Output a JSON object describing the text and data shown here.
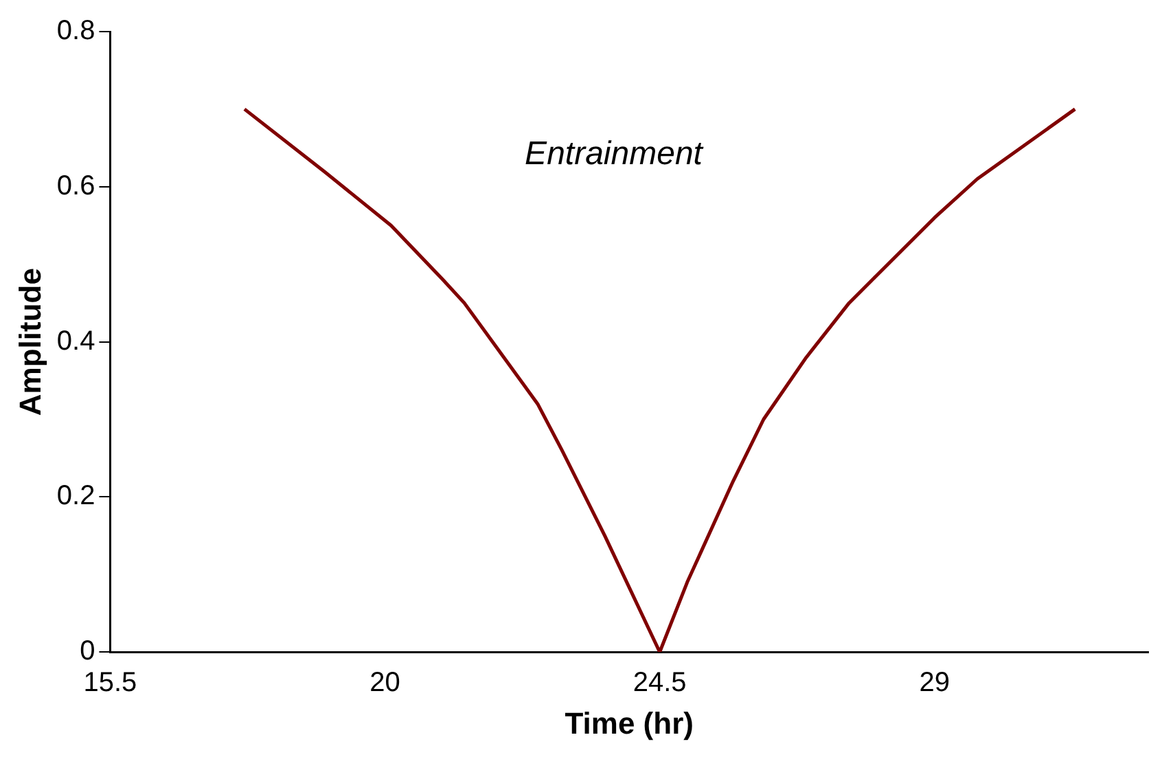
{
  "chart_data": {
    "type": "line",
    "xlabel": "Time (hr)",
    "ylabel": "Amplitude",
    "annotations": [
      "Entrainment"
    ],
    "x": [
      17.7,
      19.0,
      20.1,
      20.95,
      21.3,
      22.5,
      22.9,
      23.6,
      24.5,
      24.95,
      25.7,
      26.2,
      26.9,
      27.6,
      29.0,
      29.7,
      31.3
    ],
    "series": [
      {
        "color": "#800000",
        "values": [
          0.7,
          0.62,
          0.55,
          0.48,
          0.45,
          0.32,
          0.26,
          0.15,
          0,
          0.09,
          0.22,
          0.3,
          0.38,
          0.45,
          0.56,
          0.61,
          0.7
        ]
      }
    ],
    "xlim": [
      15.5,
      32.5
    ],
    "xticks": [
      15.5,
      20,
      24.5,
      29
    ],
    "ylim": [
      0,
      0.8
    ],
    "yticks": [
      0,
      0.2,
      0.4,
      0.6,
      0.8
    ],
    "grid": false,
    "legend": false,
    "marker": "none",
    "line_style": "solid"
  }
}
